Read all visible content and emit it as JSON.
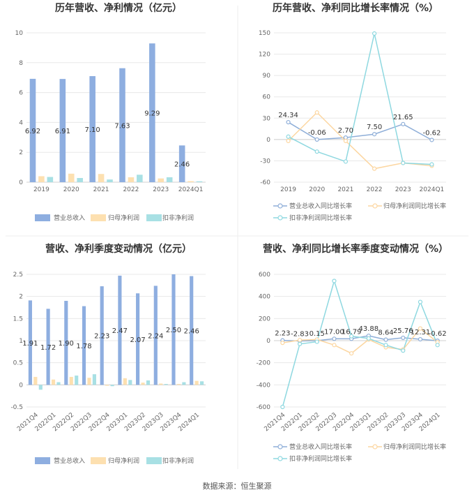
{
  "footer": {
    "source": "数据来源：恒生聚源"
  },
  "colors": {
    "revenue": "#8eaee0",
    "parent_profit": "#fde0b0",
    "deducted_profit": "#a8e0e4",
    "revenue_line": "#8eaed8",
    "parent_line": "#fcd6a0",
    "deducted_line": "#8ed8e0",
    "grid": "#e8e8e8",
    "divider": "#eeeeee"
  },
  "chart_data": [
    {
      "type": "bar",
      "title": "历年营收、净利情况（亿元）",
      "categories": [
        "2019",
        "2020",
        "2021",
        "2022",
        "2023",
        "2024Q1"
      ],
      "series": [
        {
          "name": "营业总收入",
          "values": [
            6.92,
            6.91,
            7.1,
            7.63,
            9.29,
            2.46
          ],
          "labels": [
            "6.92",
            "6.91",
            "7.10",
            "7.63",
            "9.29",
            "2.46"
          ]
        },
        {
          "name": "归母净利润",
          "values": [
            0.4,
            0.57,
            0.55,
            0.33,
            0.25,
            0.07
          ]
        },
        {
          "name": "扣非净利润",
          "values": [
            0.35,
            0.28,
            0.18,
            0.5,
            0.33,
            0.06
          ]
        }
      ],
      "ylim": [
        0,
        10
      ],
      "yticks": [
        0,
        2,
        4,
        6,
        8,
        10
      ],
      "grid": true,
      "legend": "bottom"
    },
    {
      "type": "line",
      "title": "历年营收、净利同比增长率情况（%）",
      "categories": [
        "2019",
        "2020",
        "2021",
        "2022",
        "2023",
        "2024Q1"
      ],
      "series": [
        {
          "name": "营业总收入同比增长率",
          "values": [
            24.34,
            -0.06,
            2.7,
            7.5,
            21.65,
            -0.62
          ],
          "labels": [
            "24.34",
            "-0.06",
            "2.70",
            "7.50",
            "21.65",
            "-0.62"
          ]
        },
        {
          "name": "归母净利润同比增长率",
          "values": [
            -2,
            38,
            -2,
            -41,
            -33,
            -37
          ]
        },
        {
          "name": "扣非净利润同比增长率",
          "values": [
            4,
            -17,
            -31,
            149,
            -33,
            -35
          ]
        }
      ],
      "ylim": [
        -60,
        150
      ],
      "yticks": [
        -60,
        -30,
        0,
        30,
        60,
        90,
        120,
        150
      ],
      "grid": true,
      "legend": "bottom"
    },
    {
      "type": "bar",
      "title": "营收、净利季度变动情况（亿元）",
      "categories": [
        "2021Q4",
        "2022Q1",
        "2022Q2",
        "2022Q3",
        "2022Q4",
        "2023Q1",
        "2023Q2",
        "2023Q3",
        "2023Q4",
        "2024Q1"
      ],
      "series": [
        {
          "name": "营业总收入",
          "values": [
            1.91,
            1.72,
            1.9,
            1.78,
            2.23,
            2.47,
            2.07,
            2.24,
            2.5,
            2.46
          ],
          "labels": [
            "1.91",
            "1.72",
            "1.90",
            "1.78",
            "2.23",
            "2.47",
            "2.07",
            "2.24",
            "2.50",
            "2.46"
          ]
        },
        {
          "name": "归母净利润",
          "values": [
            0.18,
            0.12,
            0.18,
            0.16,
            -0.02,
            0.15,
            0.05,
            0.03,
            0.02,
            0.09
          ]
        },
        {
          "name": "扣非净利润",
          "values": [
            -0.11,
            0.06,
            0.21,
            0.24,
            -0.03,
            0.11,
            0.1,
            0.02,
            0.06,
            0.08
          ]
        }
      ],
      "ylim": [
        -0.5,
        2.5
      ],
      "yticks": [
        -0.5,
        0,
        0.5,
        1,
        1.5,
        2,
        2.5
      ],
      "grid": true,
      "legend": "bottom"
    },
    {
      "type": "line",
      "title": "营收、净利同比增长率季度变动情况（%）",
      "categories": [
        "2021Q4",
        "2022Q1",
        "2022Q2",
        "2022Q3",
        "2022Q4",
        "2023Q1",
        "2023Q2",
        "2023Q3",
        "2023Q4",
        "2024Q1"
      ],
      "series": [
        {
          "name": "营业总收入同比增长率",
          "values": [
            2.23,
            -2.83,
            0.15,
            17.0,
            16.79,
            43.88,
            8.64,
            25.76,
            12.31,
            -0.62
          ],
          "labels": [
            "2.23",
            "-2.83",
            "0.15",
            "17.00",
            "16.79",
            "43.88",
            "8.64",
            "25.76",
            "12.31",
            "-0.62"
          ]
        },
        {
          "name": "归母净利润同比增长率",
          "values": [
            -20,
            5,
            10,
            -40,
            -115,
            10,
            -60,
            -80,
            110,
            -15
          ]
        },
        {
          "name": "扣非净利润同比增长率",
          "values": [
            -600,
            -30,
            -10,
            540,
            40,
            20,
            -40,
            -90,
            350,
            -40
          ]
        }
      ],
      "ylim": [
        -600,
        600
      ],
      "yticks": [
        -600,
        -400,
        -200,
        0,
        200,
        400,
        600
      ],
      "grid": true,
      "legend": "bottom"
    }
  ]
}
